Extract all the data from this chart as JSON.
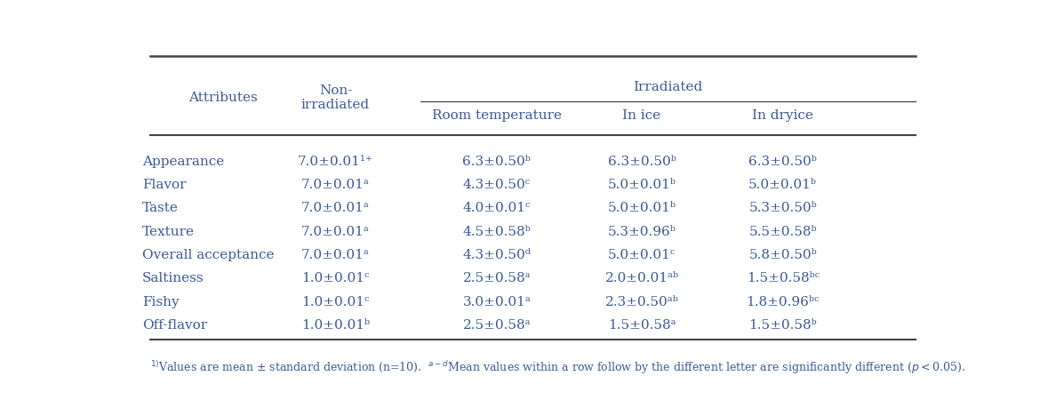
{
  "rows": [
    [
      "Appearance",
      "7.0±0.01¹⁺",
      "6.3±0.50ᵇ",
      "6.3±0.50ᵇ",
      "6.3±0.50ᵇ"
    ],
    [
      "Flavor",
      "7.0±0.01ᵃ",
      "4.3±0.50ᶜ",
      "5.0±0.01ᵇ",
      "5.0±0.01ᵇ"
    ],
    [
      "Taste",
      "7.0±0.01ᵃ",
      "4.0±0.01ᶜ",
      "5.0±0.01ᵇ",
      "5.3±0.50ᵇ"
    ],
    [
      "Texture",
      "7.0±0.01ᵃ",
      "4.5±0.58ᵇ",
      "5.3±0.96ᵇ",
      "5.5±0.58ᵇ"
    ],
    [
      "Overall acceptance",
      "7.0±0.01ᵃ",
      "4.3±0.50ᵈ",
      "5.0±0.01ᶜ",
      "5.8±0.50ᵇ"
    ],
    [
      "Saltiness",
      "1.0±0.01ᶜ",
      "2.5±0.58ᵃ",
      "2.0±0.01ᵃᵇ",
      "1.5±0.58ᵇᶜ"
    ],
    [
      "Fishy",
      "1.0±0.01ᶜ",
      "3.0±0.01ᵃ",
      "2.3±0.50ᵃᵇ",
      "1.8±0.96ᵇᶜ"
    ],
    [
      "Off-flavor",
      "1.0±0.01ᵇ",
      "2.5±0.58ᵃ",
      "1.5±0.58ᵃ",
      "1.5±0.58ᵇ"
    ]
  ],
  "col_attr": "Attributes",
  "col_nonirr": "Non-\nirradiated",
  "col_irr_header": "Irradiated",
  "col_sub1": "Room temperature",
  "col_sub2": "In ice",
  "col_sub3": "In dryice",
  "text_color": "#3b5998",
  "line_color": "#444444",
  "font_size_header": 11,
  "font_size_data": 11,
  "font_size_footnote": 9,
  "bg_color": "#ffffff",
  "footnote1": "1)Values are mean ± standard deviation (n=10).",
  "footnote2": " a-dMean values within a row follow by the different letter are significantly different (",
  "footnote3": "p<0.05)."
}
